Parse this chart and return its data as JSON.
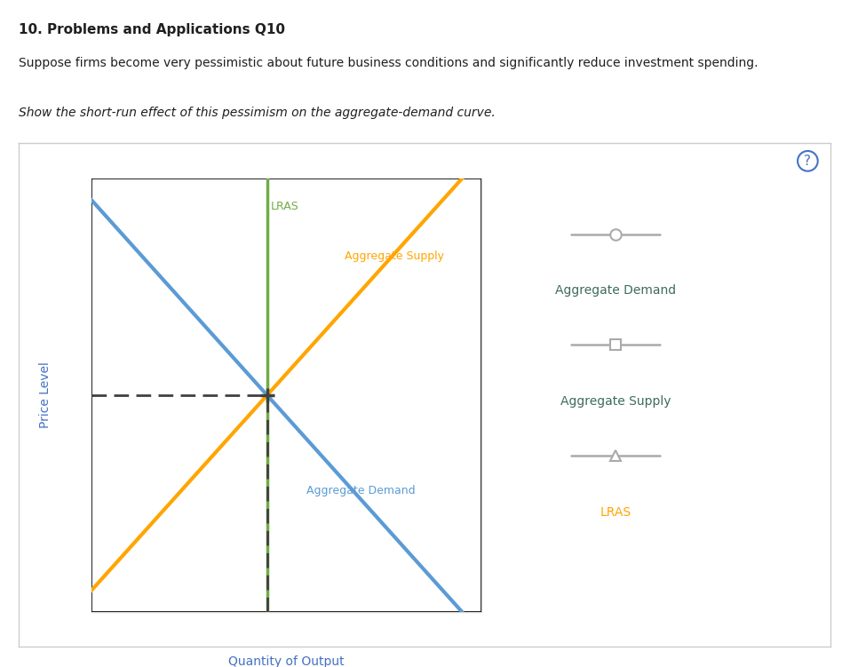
{
  "title_bold": "10. Problems and Applications Q10",
  "subtitle": "Suppose firms become very pessimistic about future business conditions and significantly reduce investment spending.",
  "instruction": "Show the short-run effect of this pessimism on the aggregate-demand curve.",
  "xlabel": "Quantity of Output",
  "ylabel": "Price Level",
  "lras_label": "LRAS",
  "as_label": "Aggregate Supply",
  "ad_label": "Aggregate Demand",
  "bg_color": "#ffffff",
  "panel_bg": "#ffffff",
  "panel_border": "#cccccc",
  "title_color": "#1f1f1f",
  "subtitle_color": "#1f1f1f",
  "instruction_color": "#1f1f1f",
  "axis_label_color": "#4472c4",
  "lras_color": "#70ad47",
  "as_color": "#ffa500",
  "ad_color": "#5b9bd5",
  "dashed_color": "#404040",
  "legend_ad_text_color": "#4a6741",
  "legend_as_text_color": "#4a6741",
  "legend_lras_text_color": "#ffa500",
  "legend_marker_color": "#aaaaaa",
  "question_mark_color": "#4472c4",
  "xlim": [
    0,
    10
  ],
  "ylim": [
    0,
    10
  ],
  "lras_x": 4.5,
  "equilibrium_x": 4.5,
  "equilibrium_y": 5.0,
  "legend_items": [
    {
      "marker": "o",
      "label": "Aggregate Demand",
      "text_color": "#3d6b5e"
    },
    {
      "marker": "s",
      "label": "Aggregate Supply",
      "text_color": "#3d6b5e"
    },
    {
      "marker": "^",
      "label": "LRAS",
      "text_color": "#ffa500"
    }
  ]
}
